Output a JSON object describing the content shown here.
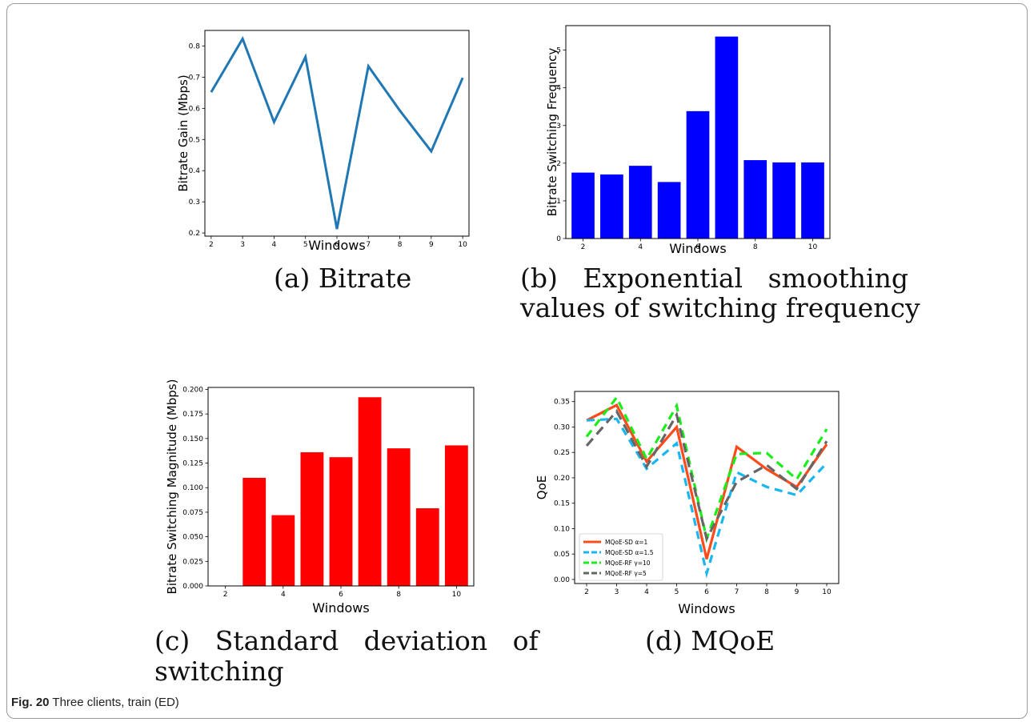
{
  "figure": {
    "number_label": "Fig. 20",
    "caption": "Three clients, train (ED)"
  },
  "panels": {
    "a": {
      "caption": "(a) Bitrate"
    },
    "b": {
      "caption_line1": "(b)   Exponential   smoothing",
      "caption_line2": "values of switching frequency"
    },
    "c": {
      "caption_line1": "(c)   Standard   deviation   of",
      "caption_line2": "switching"
    },
    "d": {
      "caption": "(d) MQoE"
    }
  },
  "chart_data": [
    {
      "id": "a",
      "type": "line",
      "xlabel": "Windows",
      "ylabel": "Bitrate Gain (Mbps)",
      "x": [
        2,
        3,
        4,
        5,
        6,
        7,
        8,
        9,
        10
      ],
      "series": [
        {
          "values": [
            0.652,
            0.823,
            0.556,
            0.765,
            0.213,
            0.735,
            0.593,
            0.462,
            0.698
          ],
          "color": "#1f77b4"
        }
      ],
      "xticks": [
        2,
        3,
        4,
        5,
        6,
        7,
        8,
        9,
        10
      ],
      "yticks": [
        0.2,
        0.3,
        0.4,
        0.5,
        0.6,
        0.7,
        0.8
      ],
      "xlim": [
        1.8,
        10.2
      ],
      "ylim": [
        0.19,
        0.85
      ]
    },
    {
      "id": "b",
      "type": "bar",
      "xlabel": "Windows",
      "ylabel": "Bitrate Switching Frequency",
      "categories": [
        2,
        3,
        4,
        5,
        6,
        7,
        8,
        9,
        10
      ],
      "values": [
        1.75,
        1.7,
        1.93,
        1.5,
        3.38,
        5.36,
        2.08,
        2.02,
        2.02
      ],
      "color": "#0000ff",
      "xticks": [
        2,
        4,
        6,
        8,
        10
      ],
      "yticks": [
        0,
        1,
        2,
        3,
        4,
        5
      ],
      "xlim": [
        1.4,
        10.6
      ],
      "ylim": [
        0,
        5.65
      ]
    },
    {
      "id": "c",
      "type": "bar",
      "xlabel": "Windows",
      "ylabel": "Bitrate Switching Magnitude (Mbps)",
      "categories": [
        2,
        3,
        4,
        5,
        6,
        7,
        8,
        9,
        10
      ],
      "values": [
        0.0,
        0.11,
        0.072,
        0.136,
        0.131,
        0.192,
        0.14,
        0.079,
        0.143
      ],
      "color": "#ff0000",
      "xticks": [
        2,
        4,
        6,
        8,
        10
      ],
      "yticks": [
        0.0,
        0.025,
        0.05,
        0.075,
        0.1,
        0.125,
        0.15,
        0.175,
        0.2
      ],
      "ytick_labels": [
        "0.000",
        "0.025",
        "0.050",
        "0.075",
        "0.100",
        "0.125",
        "0.150",
        "0.175",
        "0.200"
      ],
      "xlim": [
        1.4,
        10.6
      ],
      "ylim": [
        0,
        0.202
      ]
    },
    {
      "id": "d",
      "type": "line",
      "xlabel": "Windows",
      "ylabel": "QoE",
      "x": [
        2,
        3,
        4,
        5,
        6,
        7,
        8,
        9,
        10
      ],
      "series": [
        {
          "name": "MQoE-SD α=1",
          "values": [
            0.313,
            0.343,
            0.232,
            0.3,
            0.04,
            0.261,
            0.217,
            0.182,
            0.266
          ],
          "color": "#ff4a1c",
          "dash": ""
        },
        {
          "name": "MQoE-SD α=1.5",
          "values": [
            0.313,
            0.316,
            0.218,
            0.268,
            0.012,
            0.211,
            0.182,
            0.166,
            0.229
          ],
          "color": "#1ab6f0",
          "dash": "10,7"
        },
        {
          "name": "MQoE-RF γ=10",
          "values": [
            0.281,
            0.358,
            0.237,
            0.342,
            0.08,
            0.247,
            0.249,
            0.197,
            0.296
          ],
          "color": "#1aee1a",
          "dash": "10,7"
        },
        {
          "name": "MQoE-RF γ=5",
          "values": [
            0.263,
            0.331,
            0.222,
            0.324,
            0.08,
            0.192,
            0.225,
            0.178,
            0.272
          ],
          "color": "#666666",
          "dash": "12,7"
        }
      ],
      "xticks": [
        2,
        3,
        4,
        5,
        6,
        7,
        8,
        9,
        10
      ],
      "yticks": [
        0.0,
        0.05,
        0.1,
        0.15,
        0.2,
        0.25,
        0.3,
        0.35
      ],
      "ytick_labels": [
        "0.00",
        "0.05",
        "0.10",
        "0.15",
        "0.20",
        "0.25",
        "0.30",
        "0.35"
      ],
      "xlim": [
        1.6,
        10.4
      ],
      "ylim": [
        -0.008,
        0.37
      ],
      "legend": "lower-left"
    }
  ]
}
